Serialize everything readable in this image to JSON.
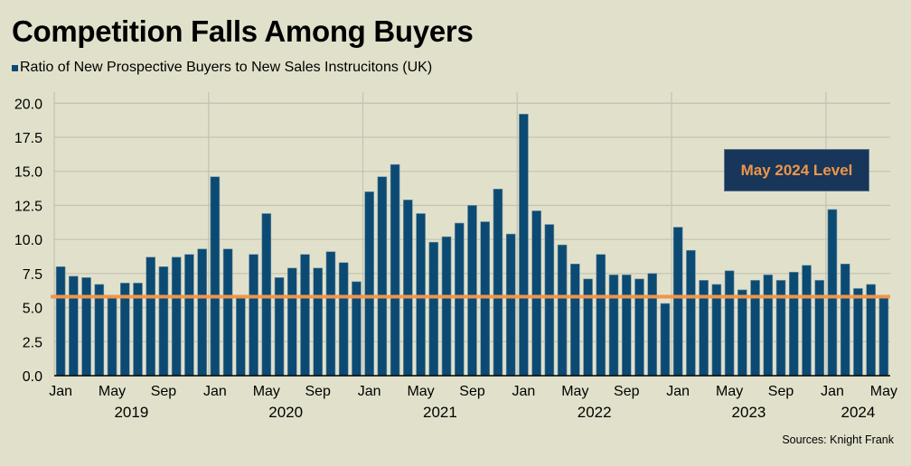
{
  "chart_data": {
    "type": "bar",
    "title": "Competition Falls Among Buyers",
    "legend": [
      {
        "name": "Ratio of New Prospective Buyers to New Sales Instrucitons (UK)",
        "color": "#0b4a73"
      }
    ],
    "legend_position": "top-left",
    "xlabel": "",
    "ylabel": "",
    "ylim": [
      0,
      20
    ],
    "yticks": [
      "0.0",
      "2.5",
      "5.0",
      "7.5",
      "10.0",
      "12.5",
      "15.0",
      "17.5",
      "20.0"
    ],
    "ytick_values": [
      0,
      2.5,
      5,
      7.5,
      10,
      12.5,
      15,
      17.5,
      20
    ],
    "grid": true,
    "x_tick_labels": [
      {
        "index": 0,
        "label": "Jan"
      },
      {
        "index": 4,
        "label": "May"
      },
      {
        "index": 8,
        "label": "Sep"
      },
      {
        "index": 12,
        "label": "Jan"
      },
      {
        "index": 16,
        "label": "May"
      },
      {
        "index": 20,
        "label": "Sep"
      },
      {
        "index": 24,
        "label": "Jan"
      },
      {
        "index": 28,
        "label": "May"
      },
      {
        "index": 32,
        "label": "Sep"
      },
      {
        "index": 36,
        "label": "Jan"
      },
      {
        "index": 40,
        "label": "May"
      },
      {
        "index": 44,
        "label": "Sep"
      },
      {
        "index": 48,
        "label": "Jan"
      },
      {
        "index": 52,
        "label": "May"
      },
      {
        "index": 56,
        "label": "Sep"
      },
      {
        "index": 60,
        "label": "Jan"
      },
      {
        "index": 64,
        "label": "May"
      }
    ],
    "year_labels": [
      {
        "label": "2019",
        "start": 0,
        "end": 11
      },
      {
        "label": "2020",
        "start": 12,
        "end": 23
      },
      {
        "label": "2021",
        "start": 24,
        "end": 35
      },
      {
        "label": "2022",
        "start": 36,
        "end": 47
      },
      {
        "label": "2023",
        "start": 48,
        "end": 59
      },
      {
        "label": "2024",
        "start": 60,
        "end": 64
      }
    ],
    "categories": [
      "Jan 2019",
      "Feb 2019",
      "Mar 2019",
      "Apr 2019",
      "May 2019",
      "Jun 2019",
      "Jul 2019",
      "Aug 2019",
      "Sep 2019",
      "Oct 2019",
      "Nov 2019",
      "Dec 2019",
      "Jan 2020",
      "Feb 2020",
      "Mar 2020",
      "Apr 2020",
      "May 2020",
      "Jun 2020",
      "Jul 2020",
      "Aug 2020",
      "Sep 2020",
      "Oct 2020",
      "Nov 2020",
      "Dec 2020",
      "Jan 2021",
      "Feb 2021",
      "Mar 2021",
      "Apr 2021",
      "May 2021",
      "Jun 2021",
      "Jul 2021",
      "Aug 2021",
      "Sep 2021",
      "Oct 2021",
      "Nov 2021",
      "Dec 2021",
      "Jan 2022",
      "Feb 2022",
      "Mar 2022",
      "Apr 2022",
      "May 2022",
      "Jun 2022",
      "Jul 2022",
      "Aug 2022",
      "Sep 2022",
      "Oct 2022",
      "Nov 2022",
      "Dec 2022",
      "Jan 2023",
      "Feb 2023",
      "Mar 2023",
      "Apr 2023",
      "May 2023",
      "Jun 2023",
      "Jul 2023",
      "Aug 2023",
      "Sep 2023",
      "Oct 2023",
      "Nov 2023",
      "Dec 2023",
      "Jan 2024",
      "Feb 2024",
      "Mar 2024",
      "Apr 2024",
      "May 2024"
    ],
    "series": [
      {
        "name": "Ratio of New Prospective Buyers to New Sales Instrucitons (UK)",
        "color": "#0b4a73",
        "values": [
          8.0,
          7.3,
          7.2,
          6.7,
          5.9,
          6.8,
          6.8,
          8.7,
          8.0,
          8.7,
          8.9,
          9.3,
          14.6,
          9.3,
          5.9,
          8.9,
          11.9,
          7.2,
          7.9,
          8.9,
          7.9,
          9.1,
          8.3,
          6.9,
          13.5,
          14.6,
          15.5,
          12.9,
          11.9,
          9.8,
          10.2,
          11.2,
          12.5,
          11.3,
          13.7,
          10.4,
          19.2,
          12.1,
          11.1,
          9.6,
          8.2,
          7.1,
          8.9,
          7.4,
          7.4,
          7.1,
          7.5,
          5.3,
          10.9,
          9.2,
          7.0,
          6.7,
          7.7,
          6.3,
          7.0,
          7.4,
          7.0,
          7.6,
          8.1,
          7.0,
          12.2,
          8.2,
          6.4,
          6.7,
          5.8
        ]
      }
    ],
    "reference_line": {
      "label": "May 2024 Level",
      "value": 5.8,
      "color": "#f0954a"
    },
    "annotation": {
      "text": "May 2024 Level",
      "background": "#17365a",
      "text_color": "#f0954a"
    },
    "source": "Sources: Knight Frank"
  }
}
